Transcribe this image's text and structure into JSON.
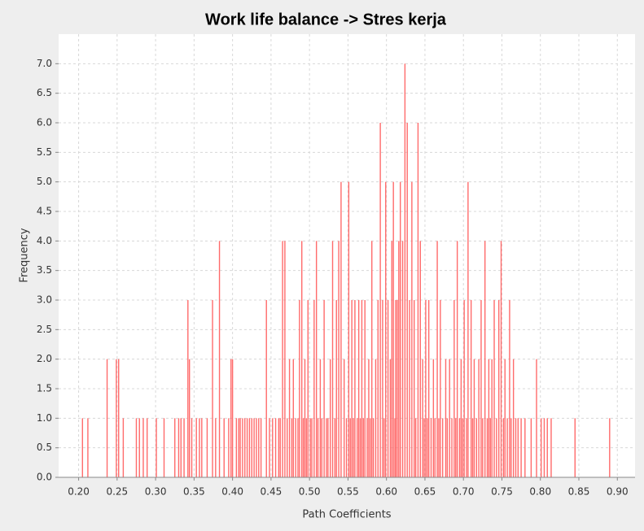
{
  "chart_data": {
    "type": "bar",
    "title": "Work life balance -> Stres kerja",
    "xlabel": "Path Coefficients",
    "ylabel": "Frequency",
    "color": "#ff6b6b",
    "grid": true,
    "xlim": [
      0.174,
      0.923
    ],
    "ylim": [
      0,
      7.5
    ],
    "xticks": [
      {
        "value": 0.2,
        "label": "0.20"
      },
      {
        "value": 0.25,
        "label": "0.25"
      },
      {
        "value": 0.3,
        "label": "0.30"
      },
      {
        "value": 0.35,
        "label": "0.35"
      },
      {
        "value": 0.4,
        "label": "0.40"
      },
      {
        "value": 0.45,
        "label": "0.45"
      },
      {
        "value": 0.5,
        "label": "0.50"
      },
      {
        "value": 0.55,
        "label": "0.55"
      },
      {
        "value": 0.6,
        "label": "0.60"
      },
      {
        "value": 0.65,
        "label": "0.65"
      },
      {
        "value": 0.7,
        "label": "0.70"
      },
      {
        "value": 0.75,
        "label": "0.75"
      },
      {
        "value": 0.8,
        "label": "0.80"
      },
      {
        "value": 0.85,
        "label": "0.85"
      },
      {
        "value": 0.9,
        "label": "0.90"
      }
    ],
    "yticks": [
      {
        "value": 0,
        "label": "0.0"
      },
      0.5,
      {
        "value": 1,
        "label": "1.0"
      },
      1.5,
      {
        "value": 2,
        "label": "2.0"
      },
      2.5,
      {
        "value": 3,
        "label": "3.0"
      },
      3.5,
      {
        "value": 4,
        "label": "4.0"
      },
      4.5,
      {
        "value": 5,
        "label": "5.0"
      },
      5.5,
      {
        "value": 6,
        "label": "6.0"
      },
      6.5,
      {
        "value": 7,
        "label": "7.0"
      }
    ],
    "x": [
      0.205,
      0.212,
      0.237,
      0.249,
      0.252,
      0.258,
      0.275,
      0.279,
      0.284,
      0.289,
      0.301,
      0.311,
      0.325,
      0.33,
      0.333,
      0.337,
      0.342,
      0.344,
      0.347,
      0.353,
      0.357,
      0.36,
      0.367,
      0.374,
      0.378,
      0.383,
      0.389,
      0.395,
      0.398,
      0.4,
      0.405,
      0.408,
      0.41,
      0.413,
      0.416,
      0.419,
      0.422,
      0.425,
      0.428,
      0.431,
      0.434,
      0.437,
      0.444,
      0.448,
      0.452,
      0.456,
      0.46,
      0.462,
      0.465,
      0.468,
      0.471,
      0.474,
      0.477,
      0.479,
      0.482,
      0.485,
      0.487,
      0.49,
      0.492,
      0.494,
      0.496,
      0.498,
      0.501,
      0.503,
      0.506,
      0.509,
      0.511,
      0.514,
      0.516,
      0.519,
      0.522,
      0.524,
      0.527,
      0.53,
      0.533,
      0.535,
      0.538,
      0.541,
      0.545,
      0.548,
      0.551,
      0.553,
      0.555,
      0.557,
      0.559,
      0.562,
      0.564,
      0.566,
      0.568,
      0.57,
      0.572,
      0.575,
      0.577,
      0.579,
      0.581,
      0.583,
      0.586,
      0.589,
      0.592,
      0.595,
      0.597,
      0.599,
      0.602,
      0.605,
      0.607,
      0.609,
      0.611,
      0.612,
      0.614,
      0.616,
      0.618,
      0.621,
      0.624,
      0.627,
      0.63,
      0.633,
      0.636,
      0.638,
      0.641,
      0.644,
      0.647,
      0.649,
      0.651,
      0.653,
      0.655,
      0.658,
      0.661,
      0.663,
      0.666,
      0.668,
      0.67,
      0.673,
      0.677,
      0.679,
      0.682,
      0.685,
      0.688,
      0.69,
      0.692,
      0.695,
      0.697,
      0.699,
      0.701,
      0.704,
      0.706,
      0.71,
      0.712,
      0.714,
      0.717,
      0.72,
      0.723,
      0.725,
      0.728,
      0.731,
      0.733,
      0.735,
      0.737,
      0.74,
      0.743,
      0.746,
      0.749,
      0.752,
      0.754,
      0.757,
      0.76,
      0.762,
      0.765,
      0.768,
      0.771,
      0.775,
      0.78,
      0.788,
      0.795,
      0.801,
      0.805,
      0.809,
      0.814,
      0.845,
      0.89
    ],
    "values": [
      1,
      1,
      2,
      2,
      2,
      1,
      1,
      1,
      1,
      1,
      1,
      1,
      1,
      1,
      1,
      1,
      3,
      2,
      1,
      1,
      1,
      1,
      1,
      3,
      1,
      4,
      1,
      1,
      2,
      2,
      1,
      1,
      1,
      1,
      1,
      1,
      1,
      1,
      1,
      1,
      1,
      1,
      3,
      1,
      1,
      1,
      1,
      1,
      4,
      4,
      1,
      2,
      1,
      2,
      1,
      1,
      3,
      4,
      1,
      2,
      1,
      3,
      1,
      1,
      3,
      4,
      1,
      2,
      1,
      3,
      1,
      1,
      2,
      4,
      1,
      3,
      4,
      5,
      2,
      1,
      5,
      1,
      3,
      1,
      3,
      1,
      3,
      1,
      3,
      1,
      3,
      1,
      2,
      1,
      4,
      1,
      2,
      3,
      6,
      3,
      1,
      5,
      3,
      2,
      4,
      5,
      1,
      3,
      3,
      4,
      5,
      4,
      7,
      6,
      3,
      5,
      3,
      1,
      6,
      4,
      2,
      1,
      3,
      1,
      3,
      1,
      2,
      1,
      4,
      1,
      3,
      1,
      2,
      1,
      2,
      1,
      3,
      1,
      4,
      1,
      2,
      1,
      3,
      1,
      5,
      3,
      1,
      2,
      1,
      2,
      3,
      1,
      4,
      1,
      2,
      1,
      2,
      3,
      1,
      3,
      4,
      1,
      2,
      1,
      3,
      1,
      2,
      1,
      1,
      1,
      1,
      1,
      2,
      1,
      1,
      1,
      1,
      1,
      1
    ]
  }
}
